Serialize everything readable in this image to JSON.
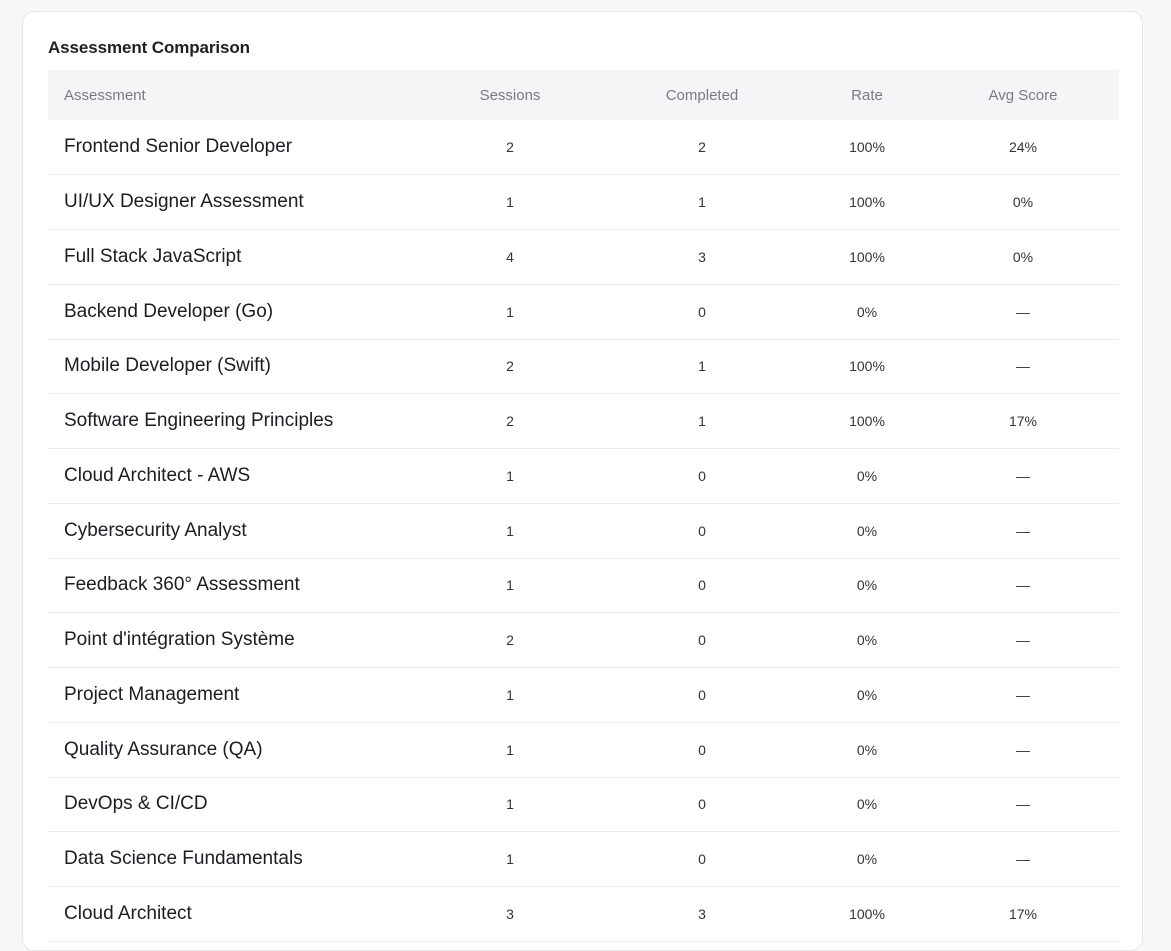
{
  "card": {
    "title": "Assessment Comparison"
  },
  "table": {
    "headers": {
      "assessment": "Assessment",
      "sessions": "Sessions",
      "completed": "Completed",
      "rate": "Rate",
      "avg_score": "Avg Score"
    },
    "rows": [
      {
        "name": "Frontend Senior Developer",
        "sessions": "2",
        "completed": "2",
        "rate": "100%",
        "avg_score": "24%"
      },
      {
        "name": "UI/UX Designer Assessment",
        "sessions": "1",
        "completed": "1",
        "rate": "100%",
        "avg_score": "0%"
      },
      {
        "name": "Full Stack JavaScript",
        "sessions": "4",
        "completed": "3",
        "rate": "100%",
        "avg_score": "0%"
      },
      {
        "name": "Backend Developer (Go)",
        "sessions": "1",
        "completed": "0",
        "rate": "0%",
        "avg_score": "—"
      },
      {
        "name": "Mobile Developer (Swift)",
        "sessions": "2",
        "completed": "1",
        "rate": "100%",
        "avg_score": "—"
      },
      {
        "name": "Software Engineering Principles",
        "sessions": "2",
        "completed": "1",
        "rate": "100%",
        "avg_score": "17%"
      },
      {
        "name": "Cloud Architect - AWS",
        "sessions": "1",
        "completed": "0",
        "rate": "0%",
        "avg_score": "—"
      },
      {
        "name": "Cybersecurity Analyst",
        "sessions": "1",
        "completed": "0",
        "rate": "0%",
        "avg_score": "—"
      },
      {
        "name": "Feedback 360° Assessment",
        "sessions": "1",
        "completed": "0",
        "rate": "0%",
        "avg_score": "—"
      },
      {
        "name": "Point d'intégration Système",
        "sessions": "2",
        "completed": "0",
        "rate": "0%",
        "avg_score": "—"
      },
      {
        "name": "Project Management",
        "sessions": "1",
        "completed": "0",
        "rate": "0%",
        "avg_score": "—"
      },
      {
        "name": "Quality Assurance (QA)",
        "sessions": "1",
        "completed": "0",
        "rate": "0%",
        "avg_score": "—"
      },
      {
        "name": "DevOps & CI/CD",
        "sessions": "1",
        "completed": "0",
        "rate": "0%",
        "avg_score": "—"
      },
      {
        "name": "Data Science Fundamentals",
        "sessions": "1",
        "completed": "0",
        "rate": "0%",
        "avg_score": "—"
      },
      {
        "name": "Cloud Architect",
        "sessions": "3",
        "completed": "3",
        "rate": "100%",
        "avg_score": "17%"
      }
    ]
  }
}
